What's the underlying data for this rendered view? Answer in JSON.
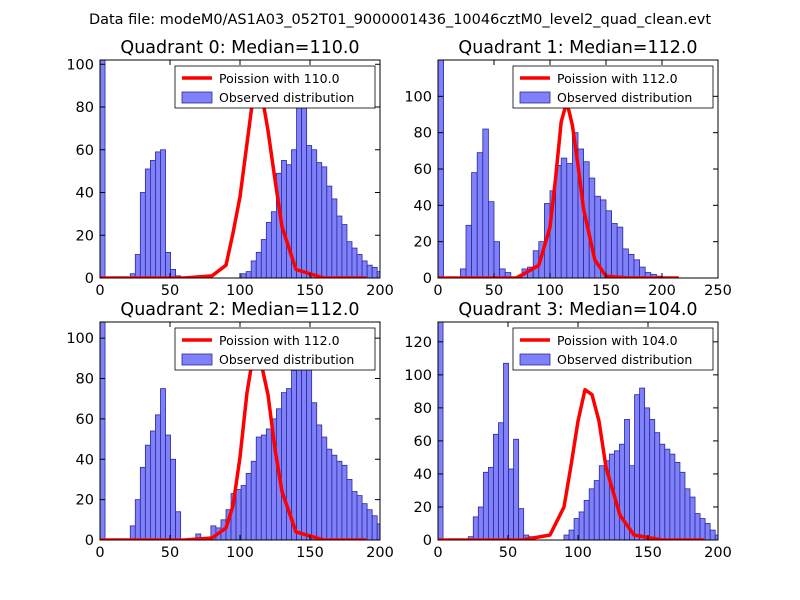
{
  "figure": {
    "suptitle": "Data file: modeM0/AS1A03_052T01_9000001436_10046cztM0_level2_quad_clean.evt"
  },
  "colors": {
    "bar_fill": "#8080f8",
    "bar_edge": "#2a2aa0",
    "poisson_line": "#ff0000",
    "axes": "#000000"
  },
  "chart_data": [
    {
      "type": "bar",
      "title": "Quadrant 0: Median=110.0",
      "xlim": [
        0,
        200
      ],
      "ylim": [
        0,
        102
      ],
      "xticks": [
        0,
        50,
        100,
        150,
        200
      ],
      "yticks": [
        0,
        20,
        40,
        60,
        80,
        100
      ],
      "legend": {
        "placement": "top-right",
        "entries": [
          "Poission with 110.0",
          "Observed distribution"
        ]
      },
      "bins": {
        "start": 0,
        "width": 3.6,
        "values": [
          102,
          0,
          0,
          0,
          0,
          0,
          2,
          11,
          40,
          51,
          55,
          59,
          60,
          12,
          4,
          1,
          0,
          0,
          0,
          0,
          0,
          0,
          0,
          0,
          0,
          0,
          0,
          0,
          2,
          3,
          8,
          12,
          18,
          26,
          31,
          49,
          55,
          53,
          60,
          82,
          85,
          62,
          60,
          54,
          52,
          43,
          37,
          29,
          25,
          17,
          14,
          11,
          8,
          6,
          5,
          3,
          2,
          0,
          0,
          0,
          0,
          0,
          0,
          0,
          0,
          0,
          0,
          0,
          0,
          0,
          0,
          0,
          0
        ]
      },
      "poisson": {
        "mean": 110.0,
        "x": [
          0,
          60,
          80,
          90,
          95,
          100,
          105,
          110,
          115,
          120,
          125,
          130,
          140,
          160,
          190
        ],
        "y": [
          0,
          0,
          1,
          6,
          21,
          38,
          63,
          88,
          88,
          69,
          46,
          24,
          4,
          0,
          0
        ]
      }
    },
    {
      "type": "bar",
      "title": "Quadrant 1: Median=112.0",
      "xlim": [
        0,
        250
      ],
      "ylim": [
        0,
        120
      ],
      "xticks": [
        0,
        50,
        100,
        150,
        200,
        250
      ],
      "yticks": [
        0,
        20,
        40,
        60,
        80,
        100
      ],
      "legend": {
        "placement": "top-right",
        "entries": [
          "Poission with 112.0",
          "Observed distribution"
        ]
      },
      "bins": {
        "start": 0,
        "width": 5.0,
        "values": [
          120,
          0,
          0,
          0,
          5,
          29,
          58,
          69,
          82,
          42,
          20,
          5,
          3,
          0,
          1,
          5,
          6,
          15,
          20,
          41,
          48,
          62,
          66,
          63,
          80,
          71,
          64,
          55,
          45,
          43,
          37,
          30,
          28,
          16,
          13,
          10,
          6,
          3,
          2,
          1,
          0,
          0,
          0,
          0,
          0,
          0,
          0,
          0,
          0,
          0
        ]
      },
      "poisson": {
        "mean": 112.0,
        "x": [
          0,
          70,
          90,
          100,
          105,
          110,
          115,
          120,
          125,
          130,
          140,
          150,
          170,
          215
        ],
        "y": [
          0,
          0,
          7,
          28,
          55,
          86,
          97,
          84,
          62,
          38,
          10,
          1,
          0,
          0
        ]
      }
    },
    {
      "type": "bar",
      "title": "Quadrant 2: Median=112.0",
      "xlim": [
        0,
        200
      ],
      "ylim": [
        0,
        108
      ],
      "xticks": [
        0,
        50,
        100,
        150,
        200
      ],
      "yticks": [
        0,
        20,
        40,
        60,
        80,
        100
      ],
      "legend": {
        "placement": "top-right",
        "entries": [
          "Poission with 112.0",
          "Observed distribution"
        ]
      },
      "bins": {
        "start": 0,
        "width": 3.6,
        "values": [
          108,
          0,
          0,
          0,
          0,
          0,
          7,
          20,
          36,
          47,
          54,
          62,
          75,
          52,
          40,
          14,
          0,
          0,
          0,
          3,
          0,
          0,
          7,
          6,
          10,
          15,
          23,
          25,
          27,
          33,
          39,
          51,
          52,
          55,
          60,
          65,
          73,
          75,
          84,
          93,
          101,
          85,
          68,
          57,
          51,
          45,
          42,
          39,
          37,
          30,
          24,
          22,
          18,
          15,
          12,
          8,
          4,
          2,
          0,
          0,
          0,
          0,
          0,
          0,
          0,
          0,
          0,
          0,
          0,
          0,
          0,
          0,
          0
        ]
      },
      "poisson": {
        "mean": 112.0,
        "x": [
          0,
          60,
          80,
          90,
          95,
          100,
          105,
          110,
          115,
          120,
          125,
          130,
          140,
          160,
          190
        ],
        "y": [
          0,
          0,
          1,
          6,
          17,
          41,
          73,
          94,
          88,
          72,
          45,
          24,
          4,
          0,
          0
        ]
      }
    },
    {
      "type": "bar",
      "title": "Quadrant 3: Median=104.0",
      "xlim": [
        0,
        200
      ],
      "ylim": [
        0,
        132
      ],
      "xticks": [
        0,
        50,
        100,
        150,
        200
      ],
      "yticks": [
        0,
        20,
        40,
        60,
        80,
        100,
        120
      ],
      "legend": {
        "placement": "top-right",
        "entries": [
          "Poission with 104.0",
          "Observed distribution"
        ]
      },
      "bins": {
        "start": 0,
        "width": 3.6,
        "values": [
          132,
          0,
          0,
          0,
          0,
          0,
          2,
          14,
          20,
          41,
          44,
          64,
          71,
          107,
          43,
          61,
          19,
          3,
          2,
          0,
          0,
          0,
          0,
          0,
          0,
          3,
          6,
          13,
          17,
          24,
          31,
          36,
          45,
          48,
          52,
          54,
          58,
          73,
          45,
          88,
          92,
          80,
          73,
          65,
          58,
          55,
          52,
          47,
          41,
          31,
          26,
          16,
          13,
          10,
          6,
          3,
          2,
          1,
          0,
          0,
          0,
          0,
          0,
          0,
          0,
          0,
          0,
          0,
          0,
          0,
          0,
          0,
          0
        ]
      },
      "poisson": {
        "mean": 104.0,
        "x": [
          0,
          60,
          80,
          90,
          95,
          100,
          105,
          110,
          115,
          120,
          130,
          140,
          160,
          190
        ],
        "y": [
          0,
          0,
          3,
          20,
          45,
          72,
          91,
          88,
          72,
          44,
          15,
          3,
          0,
          0
        ]
      }
    }
  ]
}
